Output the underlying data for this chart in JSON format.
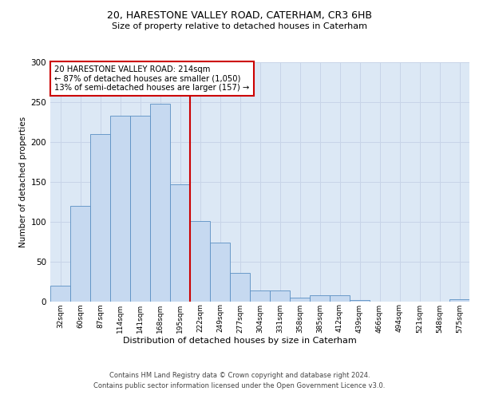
{
  "title1": "20, HARESTONE VALLEY ROAD, CATERHAM, CR3 6HB",
  "title2": "Size of property relative to detached houses in Caterham",
  "xlabel": "Distribution of detached houses by size in Caterham",
  "ylabel": "Number of detached properties",
  "bar_labels": [
    "32sqm",
    "60sqm",
    "87sqm",
    "114sqm",
    "141sqm",
    "168sqm",
    "195sqm",
    "222sqm",
    "249sqm",
    "277sqm",
    "304sqm",
    "331sqm",
    "358sqm",
    "385sqm",
    "412sqm",
    "439sqm",
    "466sqm",
    "494sqm",
    "521sqm",
    "548sqm",
    "575sqm"
  ],
  "bar_values": [
    20,
    120,
    210,
    233,
    233,
    248,
    147,
    101,
    74,
    36,
    14,
    14,
    5,
    8,
    8,
    2,
    0,
    0,
    0,
    0,
    3
  ],
  "bar_color": "#c6d9f0",
  "bar_edge_color": "#5a8fc3",
  "vline_x_index": 7,
  "vline_color": "#cc0000",
  "annotation_text": "20 HARESTONE VALLEY ROAD: 214sqm\n← 87% of detached houses are smaller (1,050)\n13% of semi-detached houses are larger (157) →",
  "annotation_box_color": "#ffffff",
  "annotation_box_edge_color": "#cc0000",
  "grid_color": "#c8d4e8",
  "background_color": "#dce8f5",
  "ylim": [
    0,
    300
  ],
  "yticks": [
    0,
    50,
    100,
    150,
    200,
    250,
    300
  ],
  "footer1": "Contains HM Land Registry data © Crown copyright and database right 2024.",
  "footer2": "Contains public sector information licensed under the Open Government Licence v3.0."
}
